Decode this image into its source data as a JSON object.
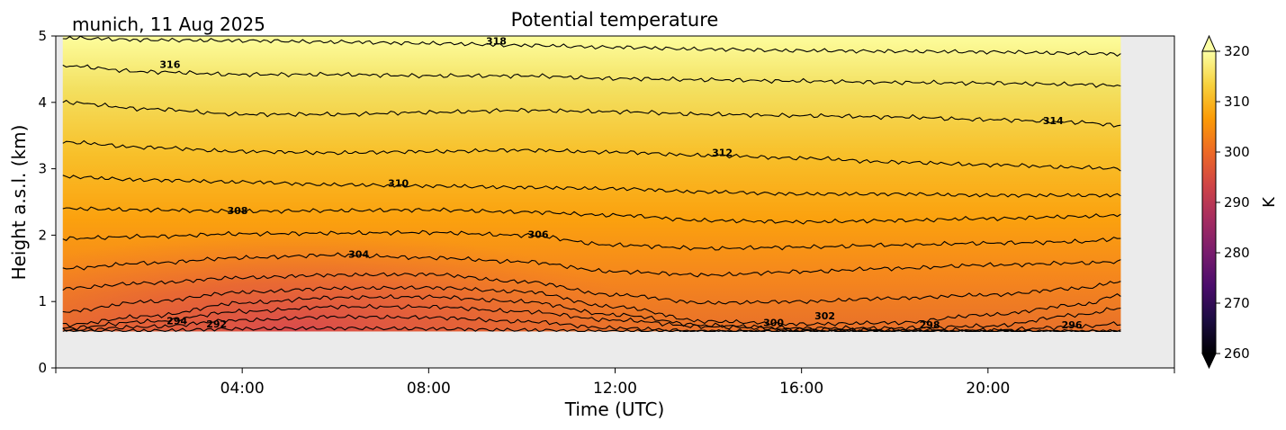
{
  "chart_data": {
    "type": "contour",
    "title": "Potential temperature",
    "subtitle": "munich, 11 Aug 2025",
    "xlabel": "Time (UTC)",
    "ylabel": "Height a.s.l. (km)",
    "x_ticks": [
      "04:00",
      "08:00",
      "12:00",
      "16:00",
      "20:00"
    ],
    "y_ticks": [
      "0",
      "1",
      "2",
      "3",
      "4",
      "5"
    ],
    "xlim_hours": [
      0,
      24
    ],
    "ylim_km": [
      0,
      5
    ],
    "data_extent": {
      "x_hours": [
        0.15,
        22.85
      ],
      "y_km": [
        0.55,
        5.0
      ]
    },
    "colorbar": {
      "label": "K",
      "ticks": [
        "260",
        "270",
        "280",
        "290",
        "300",
        "310",
        "320"
      ],
      "range": [
        260,
        320
      ],
      "extend": "both",
      "colormap": "inferno",
      "stops": [
        "#000004",
        "#1b0c41",
        "#4a0c6b",
        "#781c6d",
        "#a52c60",
        "#cf4446",
        "#ed6925",
        "#fb9b06",
        "#f7d13d",
        "#fcffa4"
      ]
    },
    "background_color": "#ebebeb",
    "contour_levels": [
      {
        "value": 292,
        "label": "292",
        "heights_km": [
          0.55,
          0.56,
          0.59,
          0.6,
          0.59,
          0.57,
          0.55,
          0.55,
          0.55,
          0.55,
          0.55,
          0.55,
          0.55
        ]
      },
      {
        "value": 294,
        "label": "294",
        "heights_km": [
          0.57,
          0.62,
          0.72,
          0.77,
          0.76,
          0.7,
          0.6,
          0.55,
          0.55,
          0.55,
          0.55,
          0.55,
          0.55
        ]
      },
      {
        "value": 296,
        "label": "296",
        "heights_km": [
          0.6,
          0.7,
          0.85,
          0.92,
          0.92,
          0.85,
          0.72,
          0.62,
          0.58,
          0.57,
          0.57,
          0.62,
          0.67
        ]
      },
      {
        "value": 298,
        "label": "298",
        "heights_km": [
          0.65,
          0.78,
          0.98,
          1.06,
          1.07,
          1.0,
          0.8,
          0.64,
          0.6,
          0.6,
          0.63,
          0.8,
          0.9
        ]
      },
      {
        "value": 300,
        "label": "300",
        "heights_km": [
          0.85,
          1.0,
          1.14,
          1.2,
          1.21,
          1.15,
          0.92,
          0.7,
          0.66,
          0.68,
          0.8,
          0.95,
          1.1
        ]
      },
      {
        "value": 302,
        "label": "302",
        "heights_km": [
          1.2,
          1.28,
          1.36,
          1.4,
          1.41,
          1.3,
          1.1,
          0.98,
          1.0,
          1.05,
          1.1,
          1.2,
          1.3
        ]
      },
      {
        "value": 304,
        "label": "304",
        "heights_km": [
          1.5,
          1.58,
          1.66,
          1.7,
          1.66,
          1.6,
          1.45,
          1.4,
          1.45,
          1.5,
          1.55,
          1.58,
          1.6
        ]
      },
      {
        "value": 306,
        "label": "306",
        "heights_km": [
          1.95,
          1.98,
          2.02,
          2.03,
          2.04,
          2.0,
          1.85,
          1.8,
          1.82,
          1.85,
          1.88,
          1.9,
          1.95
        ]
      },
      {
        "value": 308,
        "label": "308",
        "heights_km": [
          2.4,
          2.38,
          2.36,
          2.37,
          2.38,
          2.35,
          2.3,
          2.22,
          2.2,
          2.22,
          2.25,
          2.28,
          2.3
        ]
      },
      {
        "value": 310,
        "label": "310",
        "heights_km": [
          2.88,
          2.83,
          2.8,
          2.76,
          2.74,
          2.72,
          2.7,
          2.65,
          2.62,
          2.62,
          2.6,
          2.6,
          2.6
        ]
      },
      {
        "value": 312,
        "label": "312",
        "heights_km": [
          3.4,
          3.32,
          3.26,
          3.24,
          3.26,
          3.28,
          3.25,
          3.2,
          3.16,
          3.1,
          3.06,
          3.02,
          3.0
        ]
      },
      {
        "value": 314,
        "label": "314",
        "heights_km": [
          4.0,
          3.9,
          3.82,
          3.82,
          3.85,
          3.88,
          3.86,
          3.82,
          3.8,
          3.78,
          3.74,
          3.7,
          3.65
        ]
      },
      {
        "value": 316,
        "label": "316",
        "heights_km": [
          4.55,
          4.46,
          4.42,
          4.42,
          4.4,
          4.4,
          4.36,
          4.34,
          4.32,
          4.3,
          4.29,
          4.27,
          4.25
        ]
      },
      {
        "value": 318,
        "label": "318",
        "heights_km": [
          4.97,
          4.94,
          4.93,
          4.91,
          4.89,
          4.86,
          4.83,
          4.8,
          4.78,
          4.77,
          4.76,
          4.74,
          4.73
        ]
      }
    ],
    "contour_times_hours": [
      0.15,
      2.0,
      4.0,
      6.0,
      8.0,
      10.0,
      12.0,
      14.0,
      16.0,
      18.0,
      20.0,
      22.0,
      22.85
    ],
    "contour_labels": [
      {
        "label": "294",
        "t": 2.6,
        "h": 0.7
      },
      {
        "label": "292",
        "t": 3.45,
        "h": 0.65
      },
      {
        "label": "304",
        "t": 6.5,
        "h": 1.7
      },
      {
        "label": "308",
        "t": 3.9,
        "h": 2.36
      },
      {
        "label": "310",
        "t": 7.35,
        "h": 2.77
      },
      {
        "label": "306",
        "t": 10.35,
        "h": 2.0
      },
      {
        "label": "312",
        "t": 14.3,
        "h": 3.23
      },
      {
        "label": "314",
        "t": 21.4,
        "h": 3.71
      },
      {
        "label": "316",
        "t": 2.45,
        "h": 4.56
      },
      {
        "label": "318",
        "t": 9.45,
        "h": 4.91
      },
      {
        "label": "300",
        "t": 15.4,
        "h": 0.67
      },
      {
        "label": "302",
        "t": 16.5,
        "h": 0.77
      },
      {
        "label": "298",
        "t": 18.75,
        "h": 0.64
      },
      {
        "label": "296",
        "t": 21.8,
        "h": 0.64
      }
    ],
    "field_colors": {
      "bottom_left_warm": "#d9494e",
      "low_right": "#f58b1f",
      "mid": "#fba30f",
      "upper": "#f7d13d",
      "top": "#fcffa4"
    }
  }
}
